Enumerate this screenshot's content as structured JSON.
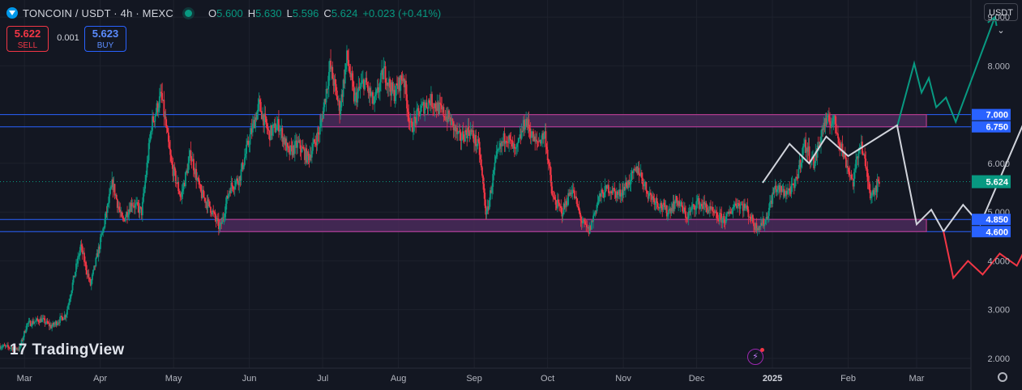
{
  "header": {
    "symbol": "TONCOIN / USDT · 4h · MEXC",
    "open_label": "O",
    "open": "5.600",
    "high_label": "H",
    "high": "5.630",
    "low_label": "L",
    "low": "5.596",
    "close_label": "C",
    "close": "5.624",
    "change": "+0.023 (+0.41%)"
  },
  "trade": {
    "sell_price": "5.622",
    "sell_label": "SELL",
    "spread": "0.001",
    "buy_price": "5.623",
    "buy_label": "BUY"
  },
  "currency_button": "USDT ⌄",
  "brand": {
    "mark": "17",
    "name": "TradingView"
  },
  "colors": {
    "background": "#131722",
    "up": "#089981",
    "down": "#f23645",
    "zone_fill": "#4a2a5a",
    "zone_border": "#b03a8a",
    "level_line": "#2962ff",
    "bull_path": "#089981",
    "base_path": "#d1d4dc",
    "bear_path": "#f23645"
  },
  "chart_data": {
    "type": "candlestick",
    "ylim": [
      1.8,
      9.35
    ],
    "y_ticks": [
      "9.000",
      "8.000",
      "7.000",
      "6.000",
      "5.000",
      "4.000",
      "3.000",
      "2.000"
    ],
    "y_tick_values": [
      9,
      8,
      7,
      6,
      5,
      4,
      3,
      2
    ],
    "x_ticks": [
      "Mar",
      "Apr",
      "May",
      "Jun",
      "Jul",
      "Aug",
      "Sep",
      "Oct",
      "Nov",
      "Dec",
      "2025",
      "Feb",
      "Mar"
    ],
    "x_tick_dates": [
      "2024-03-01",
      "2024-04-01",
      "2024-05-01",
      "2024-06-01",
      "2024-07-01",
      "2024-08-01",
      "2024-09-01",
      "2024-10-01",
      "2024-11-01",
      "2024-12-01",
      "2025-01-01",
      "2025-02-01",
      "2025-03-01"
    ],
    "price_path": [
      [
        "2024-02-20",
        2.25
      ],
      [
        "2024-02-28",
        2.2
      ],
      [
        "2024-03-02",
        2.7
      ],
      [
        "2024-03-08",
        2.8
      ],
      [
        "2024-03-12",
        2.65
      ],
      [
        "2024-03-18",
        2.9
      ],
      [
        "2024-03-24",
        4.3
      ],
      [
        "2024-03-28",
        3.5
      ],
      [
        "2024-04-02",
        4.6
      ],
      [
        "2024-04-06",
        5.6
      ],
      [
        "2024-04-10",
        4.8
      ],
      [
        "2024-04-14",
        5.2
      ],
      [
        "2024-04-18",
        5.0
      ],
      [
        "2024-04-22",
        6.8
      ],
      [
        "2024-04-26",
        7.4
      ],
      [
        "2024-04-30",
        6.0
      ],
      [
        "2024-05-04",
        5.3
      ],
      [
        "2024-05-08",
        6.2
      ],
      [
        "2024-05-12",
        5.4
      ],
      [
        "2024-05-16",
        5.1
      ],
      [
        "2024-05-20",
        4.65
      ],
      [
        "2024-05-24",
        5.5
      ],
      [
        "2024-05-28",
        5.7
      ],
      [
        "2024-06-01",
        6.5
      ],
      [
        "2024-06-05",
        7.2
      ],
      [
        "2024-06-09",
        6.6
      ],
      [
        "2024-06-13",
        6.8
      ],
      [
        "2024-06-17",
        6.2
      ],
      [
        "2024-06-21",
        6.4
      ],
      [
        "2024-06-25",
        6.1
      ],
      [
        "2024-06-30",
        6.7
      ],
      [
        "2024-07-04",
        8.0
      ],
      [
        "2024-07-08",
        7.1
      ],
      [
        "2024-07-11",
        8.2
      ],
      [
        "2024-07-14",
        7.3
      ],
      [
        "2024-07-18",
        7.7
      ],
      [
        "2024-07-22",
        7.2
      ],
      [
        "2024-07-26",
        7.9
      ],
      [
        "2024-07-30",
        7.4
      ],
      [
        "2024-08-03",
        7.8
      ],
      [
        "2024-08-06",
        6.7
      ],
      [
        "2024-08-10",
        7.1
      ],
      [
        "2024-08-14",
        7.3
      ],
      [
        "2024-08-18",
        7.1
      ],
      [
        "2024-08-22",
        6.9
      ],
      [
        "2024-08-26",
        6.5
      ],
      [
        "2024-08-30",
        6.7
      ],
      [
        "2024-09-03",
        6.3
      ],
      [
        "2024-09-06",
        4.9
      ],
      [
        "2024-09-10",
        6.1
      ],
      [
        "2024-09-14",
        6.6
      ],
      [
        "2024-09-18",
        6.2
      ],
      [
        "2024-09-22",
        6.9
      ],
      [
        "2024-09-26",
        6.4
      ],
      [
        "2024-09-30",
        6.6
      ],
      [
        "2024-10-03",
        5.3
      ],
      [
        "2024-10-07",
        5.0
      ],
      [
        "2024-10-11",
        5.5
      ],
      [
        "2024-10-15",
        4.8
      ],
      [
        "2024-10-18",
        4.6
      ],
      [
        "2024-10-22",
        5.3
      ],
      [
        "2024-10-26",
        5.5
      ],
      [
        "2024-10-30",
        5.35
      ],
      [
        "2024-11-03",
        5.6
      ],
      [
        "2024-11-07",
        5.9
      ],
      [
        "2024-11-11",
        5.4
      ],
      [
        "2024-11-15",
        5.2
      ],
      [
        "2024-11-19",
        5.0
      ],
      [
        "2024-11-23",
        5.25
      ],
      [
        "2024-11-27",
        4.9
      ],
      [
        "2024-12-01",
        5.2
      ],
      [
        "2024-12-05",
        5.1
      ],
      [
        "2024-12-09",
        4.9
      ],
      [
        "2024-12-13",
        4.85
      ],
      [
        "2024-12-17",
        5.2
      ],
      [
        "2024-12-21",
        5.1
      ],
      [
        "2024-12-25",
        4.7
      ],
      [
        "2024-12-29",
        4.8
      ],
      [
        "2025-01-02",
        5.5
      ],
      [
        "2025-01-06",
        5.4
      ],
      [
        "2025-01-10",
        5.5
      ],
      [
        "2025-01-14",
        6.4
      ],
      [
        "2025-01-18",
        6.0
      ],
      [
        "2025-01-22",
        6.8
      ],
      [
        "2025-01-26",
        6.9
      ],
      [
        "2025-01-30",
        6.2
      ],
      [
        "2025-02-03",
        5.6
      ],
      [
        "2025-02-06",
        6.5
      ],
      [
        "2025-02-10",
        5.4
      ],
      [
        "2025-02-14",
        5.6
      ]
    ],
    "current_price": 5.624,
    "zones": [
      {
        "label_top": "7.000",
        "top": 7.0,
        "label_bottom": "6.750",
        "bottom": 6.75,
        "from": "2024-06-30",
        "to": "2025-03-05"
      },
      {
        "label_top": "4.850",
        "top": 4.85,
        "label_bottom": "4.600",
        "bottom": 4.6,
        "from": "2024-05-20",
        "to": "2025-03-05"
      }
    ],
    "projections": [
      {
        "role": "bull",
        "points": [
          [
            "2025-02-21",
            6.75
          ],
          [
            "2025-02-28",
            8.05
          ],
          [
            "2025-03-03",
            7.45
          ],
          [
            "2025-03-06",
            7.75
          ],
          [
            "2025-03-09",
            7.15
          ],
          [
            "2025-03-13",
            7.35
          ],
          [
            "2025-03-17",
            6.85
          ],
          [
            "2025-04-02",
            9.0
          ]
        ]
      },
      {
        "role": "base",
        "points": [
          [
            "2024-12-28",
            5.6
          ],
          [
            "2025-01-08",
            6.4
          ],
          [
            "2025-01-16",
            6.0
          ],
          [
            "2025-01-23",
            6.55
          ],
          [
            "2025-02-01",
            6.15
          ],
          [
            "2025-02-21",
            6.78
          ],
          [
            "2025-03-01",
            4.75
          ],
          [
            "2025-03-07",
            5.05
          ],
          [
            "2025-03-12",
            4.6
          ],
          [
            "2025-03-20",
            5.15
          ],
          [
            "2025-03-27",
            4.75
          ],
          [
            "2025-04-14",
            6.85
          ],
          [
            "2025-04-21",
            6.7
          ]
        ]
      },
      {
        "role": "bear",
        "points": [
          [
            "2025-03-12",
            4.6
          ],
          [
            "2025-03-16",
            3.65
          ],
          [
            "2025-03-22",
            4.0
          ],
          [
            "2025-03-28",
            3.72
          ],
          [
            "2025-04-04",
            4.15
          ],
          [
            "2025-04-11",
            3.9
          ],
          [
            "2025-04-18",
            4.6
          ],
          [
            "2025-04-28",
            2.8
          ],
          [
            "2025-05-03",
            3.0
          ]
        ]
      }
    ]
  }
}
